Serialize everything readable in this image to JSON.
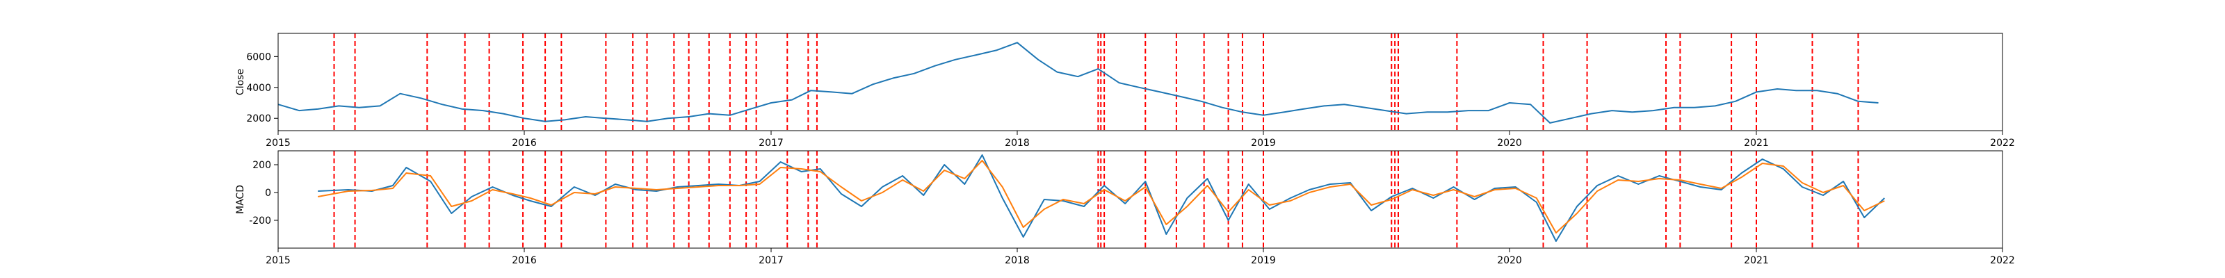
{
  "chart_data": [
    {
      "type": "line",
      "ylabel": "Close",
      "xlabel": "",
      "title": "",
      "x_domain": [
        "2015-01-01",
        "2022-01-01"
      ],
      "xticks": [
        "2015",
        "2016",
        "2017",
        "2018",
        "2019",
        "2020",
        "2021",
        "2022"
      ],
      "ylim": [
        1200,
        7500
      ],
      "yticks": [
        2000,
        4000,
        6000
      ],
      "grid": false,
      "legend": "none",
      "colors": {
        "series": "#1f77b4",
        "markers": "#ff0000"
      },
      "series": [
        {
          "x": [
            "2015-01-01",
            "2015-02-01",
            "2015-03-01",
            "2015-04-01",
            "2015-05-01",
            "2015-06-01",
            "2015-07-01",
            "2015-08-01",
            "2015-09-01",
            "2015-10-01",
            "2015-11-01",
            "2015-12-01",
            "2016-01-01",
            "2016-02-01",
            "2016-03-01",
            "2016-04-01",
            "2016-05-01",
            "2016-06-01",
            "2016-07-01",
            "2016-08-01",
            "2016-09-01",
            "2016-10-01",
            "2016-11-01",
            "2016-12-01",
            "2017-01-01",
            "2017-02-01",
            "2017-03-01",
            "2017-04-01",
            "2017-05-01",
            "2017-06-01",
            "2017-07-01",
            "2017-08-01",
            "2017-09-01",
            "2017-10-01",
            "2017-11-01",
            "2017-12-01",
            "2018-01-01",
            "2018-02-01",
            "2018-03-01",
            "2018-04-01",
            "2018-05-01",
            "2018-06-01",
            "2018-07-01",
            "2018-08-01",
            "2018-09-01",
            "2018-10-01",
            "2018-11-01",
            "2018-12-01",
            "2019-01-01",
            "2019-02-01",
            "2019-03-01",
            "2019-04-01",
            "2019-05-01",
            "2019-06-01",
            "2019-07-01",
            "2019-08-01",
            "2019-09-01",
            "2019-10-01",
            "2019-11-01",
            "2019-12-01",
            "2020-01-01",
            "2020-02-01",
            "2020-03-01",
            "2020-04-01",
            "2020-05-01",
            "2020-06-01",
            "2020-07-01",
            "2020-08-01",
            "2020-09-01",
            "2020-10-01",
            "2020-11-01",
            "2020-12-01",
            "2021-01-01",
            "2021-02-01",
            "2021-03-01",
            "2021-04-01",
            "2021-05-01",
            "2021-06-01",
            "2021-07-01"
          ],
          "values": [
            2900,
            2500,
            2600,
            2800,
            2700,
            2800,
            3600,
            3300,
            2900,
            2600,
            2500,
            2300,
            2000,
            1800,
            1900,
            2100,
            2000,
            1900,
            1800,
            2000,
            2100,
            2300,
            2200,
            2600,
            3000,
            3200,
            3800,
            3700,
            3600,
            4200,
            4600,
            4900,
            5400,
            5800,
            6100,
            6400,
            6900,
            5800,
            5000,
            4700,
            5200,
            4300,
            4000,
            3700,
            3400,
            3100,
            2700,
            2400,
            2200,
            2400,
            2600,
            2800,
            2900,
            2700,
            2500,
            2300,
            2400,
            2400,
            2500,
            2500,
            3000,
            2900,
            1700,
            2000,
            2300,
            2500,
            2400,
            2500,
            2700,
            2700,
            2800,
            3100,
            3700,
            3900,
            3800,
            3800,
            3600,
            3100,
            3000
          ]
        }
      ],
      "markers": [
        "2015-03-25",
        "2015-04-25",
        "2015-08-10",
        "2015-10-05",
        "2015-11-10",
        "2015-12-30",
        "2016-02-01",
        "2016-02-25",
        "2016-05-01",
        "2016-06-10",
        "2016-07-01",
        "2016-08-10",
        "2016-09-01",
        "2016-10-01",
        "2016-11-01",
        "2016-11-25",
        "2016-12-10",
        "2017-01-25",
        "2017-02-25",
        "2017-03-10",
        "2018-05-01",
        "2018-05-05",
        "2018-05-10",
        "2018-07-10",
        "2018-08-25",
        "2018-10-05",
        "2018-11-10",
        "2018-12-01",
        "2019-01-01",
        "2019-07-10",
        "2019-07-15",
        "2019-07-20",
        "2019-10-15",
        "2020-02-20",
        "2020-04-25",
        "2020-08-20",
        "2020-09-10",
        "2020-11-25",
        "2021-01-01",
        "2021-03-25",
        "2021-06-01"
      ]
    },
    {
      "type": "line",
      "ylabel": "MACD",
      "xlabel": "",
      "title": "",
      "x_domain": [
        "2015-01-01",
        "2022-01-01"
      ],
      "xticks": [
        "2015",
        "2016",
        "2017",
        "2018",
        "2019",
        "2020",
        "2021",
        "2022"
      ],
      "ylim": [
        -400,
        300
      ],
      "yticks": [
        200,
        0,
        -200
      ],
      "grid": false,
      "legend": "none",
      "colors": {
        "macd": "#1f77b4",
        "signal": "#ff7f0e",
        "markers": "#ff0000"
      },
      "x": [
        "2015-03-01",
        "2015-04-15",
        "2015-05-20",
        "2015-06-20",
        "2015-07-10",
        "2015-08-15",
        "2015-09-15",
        "2015-10-15",
        "2015-11-15",
        "2015-12-15",
        "2016-01-10",
        "2016-02-10",
        "2016-03-15",
        "2016-04-15",
        "2016-05-15",
        "2016-06-15",
        "2016-07-15",
        "2016-08-15",
        "2016-09-15",
        "2016-10-15",
        "2016-11-15",
        "2016-12-15",
        "2017-01-15",
        "2017-02-15",
        "2017-03-15",
        "2017-04-15",
        "2017-05-15",
        "2017-06-15",
        "2017-07-15",
        "2017-08-15",
        "2017-09-15",
        "2017-10-15",
        "2017-11-10",
        "2017-12-10",
        "2018-01-10",
        "2018-02-10",
        "2018-03-10",
        "2018-04-10",
        "2018-05-10",
        "2018-06-10",
        "2018-07-10",
        "2018-08-10",
        "2018-09-10",
        "2018-10-10",
        "2018-11-10",
        "2018-12-10",
        "2019-01-10",
        "2019-02-10",
        "2019-03-10",
        "2019-04-10",
        "2019-05-10",
        "2019-06-10",
        "2019-07-10",
        "2019-08-10",
        "2019-09-10",
        "2019-10-10",
        "2019-11-10",
        "2019-12-10",
        "2020-01-10",
        "2020-02-10",
        "2020-03-10",
        "2020-04-10",
        "2020-05-10",
        "2020-06-10",
        "2020-07-10",
        "2020-08-10",
        "2020-09-10",
        "2020-10-10",
        "2020-11-10",
        "2020-12-10",
        "2021-01-10",
        "2021-02-10",
        "2021-03-10",
        "2021-04-10",
        "2021-05-10",
        "2021-06-10",
        "2021-07-10"
      ],
      "series": [
        {
          "values": [
            10,
            20,
            10,
            50,
            180,
            80,
            -150,
            -30,
            40,
            -20,
            -60,
            -100,
            40,
            -20,
            60,
            20,
            10,
            40,
            50,
            60,
            50,
            80,
            220,
            150,
            170,
            -10,
            -100,
            40,
            120,
            -20,
            200,
            60,
            270,
            -40,
            -320,
            -50,
            -60,
            -100,
            50,
            -80,
            80,
            -300,
            -40,
            100,
            -200,
            60,
            -120,
            -40,
            20,
            60,
            70,
            -130,
            -30,
            30,
            -40,
            40,
            -50,
            30,
            40,
            -70,
            -350,
            -100,
            50,
            120,
            60,
            120,
            80,
            40,
            20,
            140,
            240,
            170,
            40,
            -20,
            80,
            -180,
            -40
          ]
        },
        {
          "values": [
            -30,
            10,
            15,
            30,
            140,
            120,
            -100,
            -60,
            20,
            -10,
            -40,
            -90,
            0,
            -10,
            40,
            30,
            20,
            30,
            40,
            50,
            50,
            60,
            180,
            170,
            150,
            40,
            -60,
            0,
            90,
            10,
            160,
            100,
            230,
            40,
            -250,
            -120,
            -50,
            -80,
            20,
            -60,
            40,
            -230,
            -100,
            50,
            -140,
            20,
            -90,
            -60,
            0,
            40,
            60,
            -90,
            -50,
            20,
            -20,
            20,
            -30,
            20,
            30,
            -40,
            -290,
            -150,
            10,
            90,
            80,
            100,
            90,
            60,
            30,
            110,
            210,
            190,
            70,
            0,
            50,
            -130,
            -60
          ]
        }
      ],
      "markers": [
        "2015-03-25",
        "2015-04-25",
        "2015-08-10",
        "2015-10-05",
        "2015-11-10",
        "2015-12-30",
        "2016-02-01",
        "2016-02-25",
        "2016-05-01",
        "2016-06-10",
        "2016-07-01",
        "2016-08-10",
        "2016-09-01",
        "2016-10-01",
        "2016-11-01",
        "2016-11-25",
        "2016-12-10",
        "2017-01-25",
        "2017-02-25",
        "2017-03-10",
        "2018-05-01",
        "2018-05-05",
        "2018-05-10",
        "2018-07-10",
        "2018-08-25",
        "2018-10-05",
        "2018-11-10",
        "2018-12-01",
        "2019-01-01",
        "2019-07-10",
        "2019-07-15",
        "2019-07-20",
        "2019-10-15",
        "2020-02-20",
        "2020-04-25",
        "2020-08-20",
        "2020-09-10",
        "2020-11-25",
        "2021-01-01",
        "2021-03-25",
        "2021-06-01"
      ]
    }
  ]
}
